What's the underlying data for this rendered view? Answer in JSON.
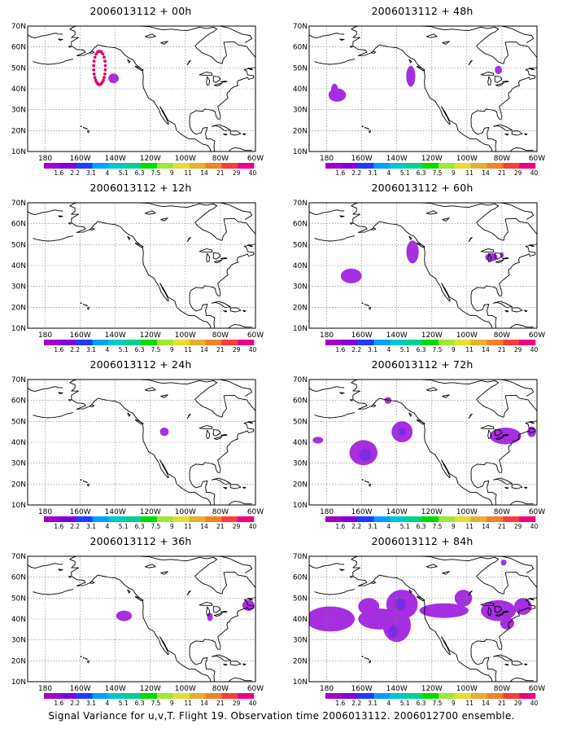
{
  "figure": {
    "caption": "Signal Variance for u,v,T. Flight 19. Observation time 2006013112. 2006012700 ensemble."
  },
  "axes": {
    "lat_labels": [
      "70N",
      "60N",
      "50N",
      "40N",
      "30N",
      "20N",
      "10N"
    ],
    "lon_labels": [
      "180",
      "160W",
      "140W",
      "120W",
      "100W",
      "80W",
      "60W"
    ],
    "lon_range": [
      -190,
      -60
    ],
    "lat_range": [
      10,
      70
    ]
  },
  "colorbar": {
    "labels": [
      "1.6",
      "2.2",
      "3.1",
      "4",
      "5.1",
      "6.3",
      "7.5",
      "9",
      "11",
      "14",
      "21",
      "29",
      "40"
    ],
    "colors": [
      "#a000c8",
      "#8200dc",
      "#1e3cff",
      "#00a0ff",
      "#00c8c8",
      "#00d28c",
      "#00dc00",
      "#a0e632",
      "#e6dc32",
      "#e6af2d",
      "#f08228",
      "#fa3c3c",
      "#f00082"
    ]
  },
  "panels": [
    {
      "title": "2006013112 + 00h",
      "flight_track": true,
      "blobs": [
        {
          "lon": -141,
          "lat": 45,
          "rx": 3,
          "ry": 2.3,
          "level": 0
        }
      ]
    },
    {
      "title": "2006013112 + 48h",
      "blobs": [
        {
          "lon": -174,
          "lat": 37,
          "rx": 5,
          "ry": 3.2,
          "level": 0
        },
        {
          "lon": -175.5,
          "lat": 39.5,
          "rx": 2,
          "ry": 3,
          "level": 0
        },
        {
          "lon": -132,
          "lat": 46,
          "rx": 2.6,
          "ry": 5,
          "level": 0
        },
        {
          "lon": -82,
          "lat": 49,
          "rx": 2,
          "ry": 2,
          "level": 0
        }
      ]
    },
    {
      "title": "2006013112 + 12h",
      "blobs": []
    },
    {
      "title": "2006013112 + 60h",
      "blobs": [
        {
          "lon": -166,
          "lat": 35,
          "rx": 6,
          "ry": 3.5,
          "level": 0
        },
        {
          "lon": -131,
          "lat": 46.5,
          "rx": 3.5,
          "ry": 5.5,
          "level": 0
        },
        {
          "lon": -86,
          "lat": 44,
          "rx": 3.5,
          "ry": 2,
          "level": 0
        },
        {
          "lon": -80,
          "lat": 45,
          "rx": 1,
          "ry": 1.4,
          "level": 0
        }
      ]
    },
    {
      "title": "2006013112 + 24h",
      "blobs": [
        {
          "lon": -112,
          "lat": 45,
          "rx": 2.5,
          "ry": 2,
          "level": 0
        }
      ]
    },
    {
      "title": "2006013112 + 72h",
      "blobs": [
        {
          "lon": -185,
          "lat": 41,
          "rx": 3,
          "ry": 1.6,
          "level": 0
        },
        {
          "lon": -159,
          "lat": 35,
          "rx": 8,
          "ry": 6,
          "level": 0
        },
        {
          "lon": -158,
          "lat": 34,
          "rx": 3.5,
          "ry": 3,
          "level": 1
        },
        {
          "lon": -137,
          "lat": 45,
          "rx": 6,
          "ry": 5,
          "level": 0
        },
        {
          "lon": -137,
          "lat": 45,
          "rx": 2,
          "ry": 2,
          "level": 1
        },
        {
          "lon": -145,
          "lat": 60,
          "rx": 2,
          "ry": 1.6,
          "level": 0
        },
        {
          "lon": -78,
          "lat": 43,
          "rx": 9,
          "ry": 4,
          "level": 0
        },
        {
          "lon": -63,
          "lat": 45,
          "rx": 2.5,
          "ry": 2.5,
          "level": 0
        }
      ]
    },
    {
      "title": "2006013112 + 36h",
      "blobs": [
        {
          "lon": -135,
          "lat": 41.5,
          "rx": 4.5,
          "ry": 2.5,
          "level": 0
        },
        {
          "lon": -86,
          "lat": 41,
          "rx": 1.6,
          "ry": 2,
          "level": 0
        },
        {
          "lon": -64,
          "lat": 46.5,
          "rx": 3.5,
          "ry": 2.6,
          "level": 0
        }
      ]
    },
    {
      "title": "2006013112 + 84h",
      "blobs": [
        {
          "lon": -178,
          "lat": 40,
          "rx": 14,
          "ry": 6,
          "level": 0
        },
        {
          "lon": -150,
          "lat": 40,
          "rx": 12,
          "ry": 5,
          "level": 0
        },
        {
          "lon": -156,
          "lat": 46,
          "rx": 6,
          "ry": 4,
          "level": 0
        },
        {
          "lon": -140,
          "lat": 37,
          "rx": 8,
          "ry": 8,
          "level": 0
        },
        {
          "lon": -137,
          "lat": 47,
          "rx": 9,
          "ry": 7,
          "level": 0
        },
        {
          "lon": -113,
          "lat": 44,
          "rx": 14,
          "ry": 3.5,
          "level": 0
        },
        {
          "lon": -102,
          "lat": 50,
          "rx": 5,
          "ry": 4,
          "level": 0
        },
        {
          "lon": -82,
          "lat": 44,
          "rx": 10,
          "ry": 5,
          "level": 0
        },
        {
          "lon": -68,
          "lat": 46,
          "rx": 5,
          "ry": 4,
          "level": 0
        },
        {
          "lon": -77,
          "lat": 38,
          "rx": 4,
          "ry": 3,
          "level": 0
        },
        {
          "lon": -142,
          "lat": 34,
          "rx": 3,
          "ry": 3,
          "level": 1
        },
        {
          "lon": -138,
          "lat": 47,
          "rx": 3,
          "ry": 3,
          "level": 1
        },
        {
          "lon": -79,
          "lat": 67,
          "rx": 1.6,
          "ry": 1.4,
          "level": 0
        }
      ]
    }
  ]
}
